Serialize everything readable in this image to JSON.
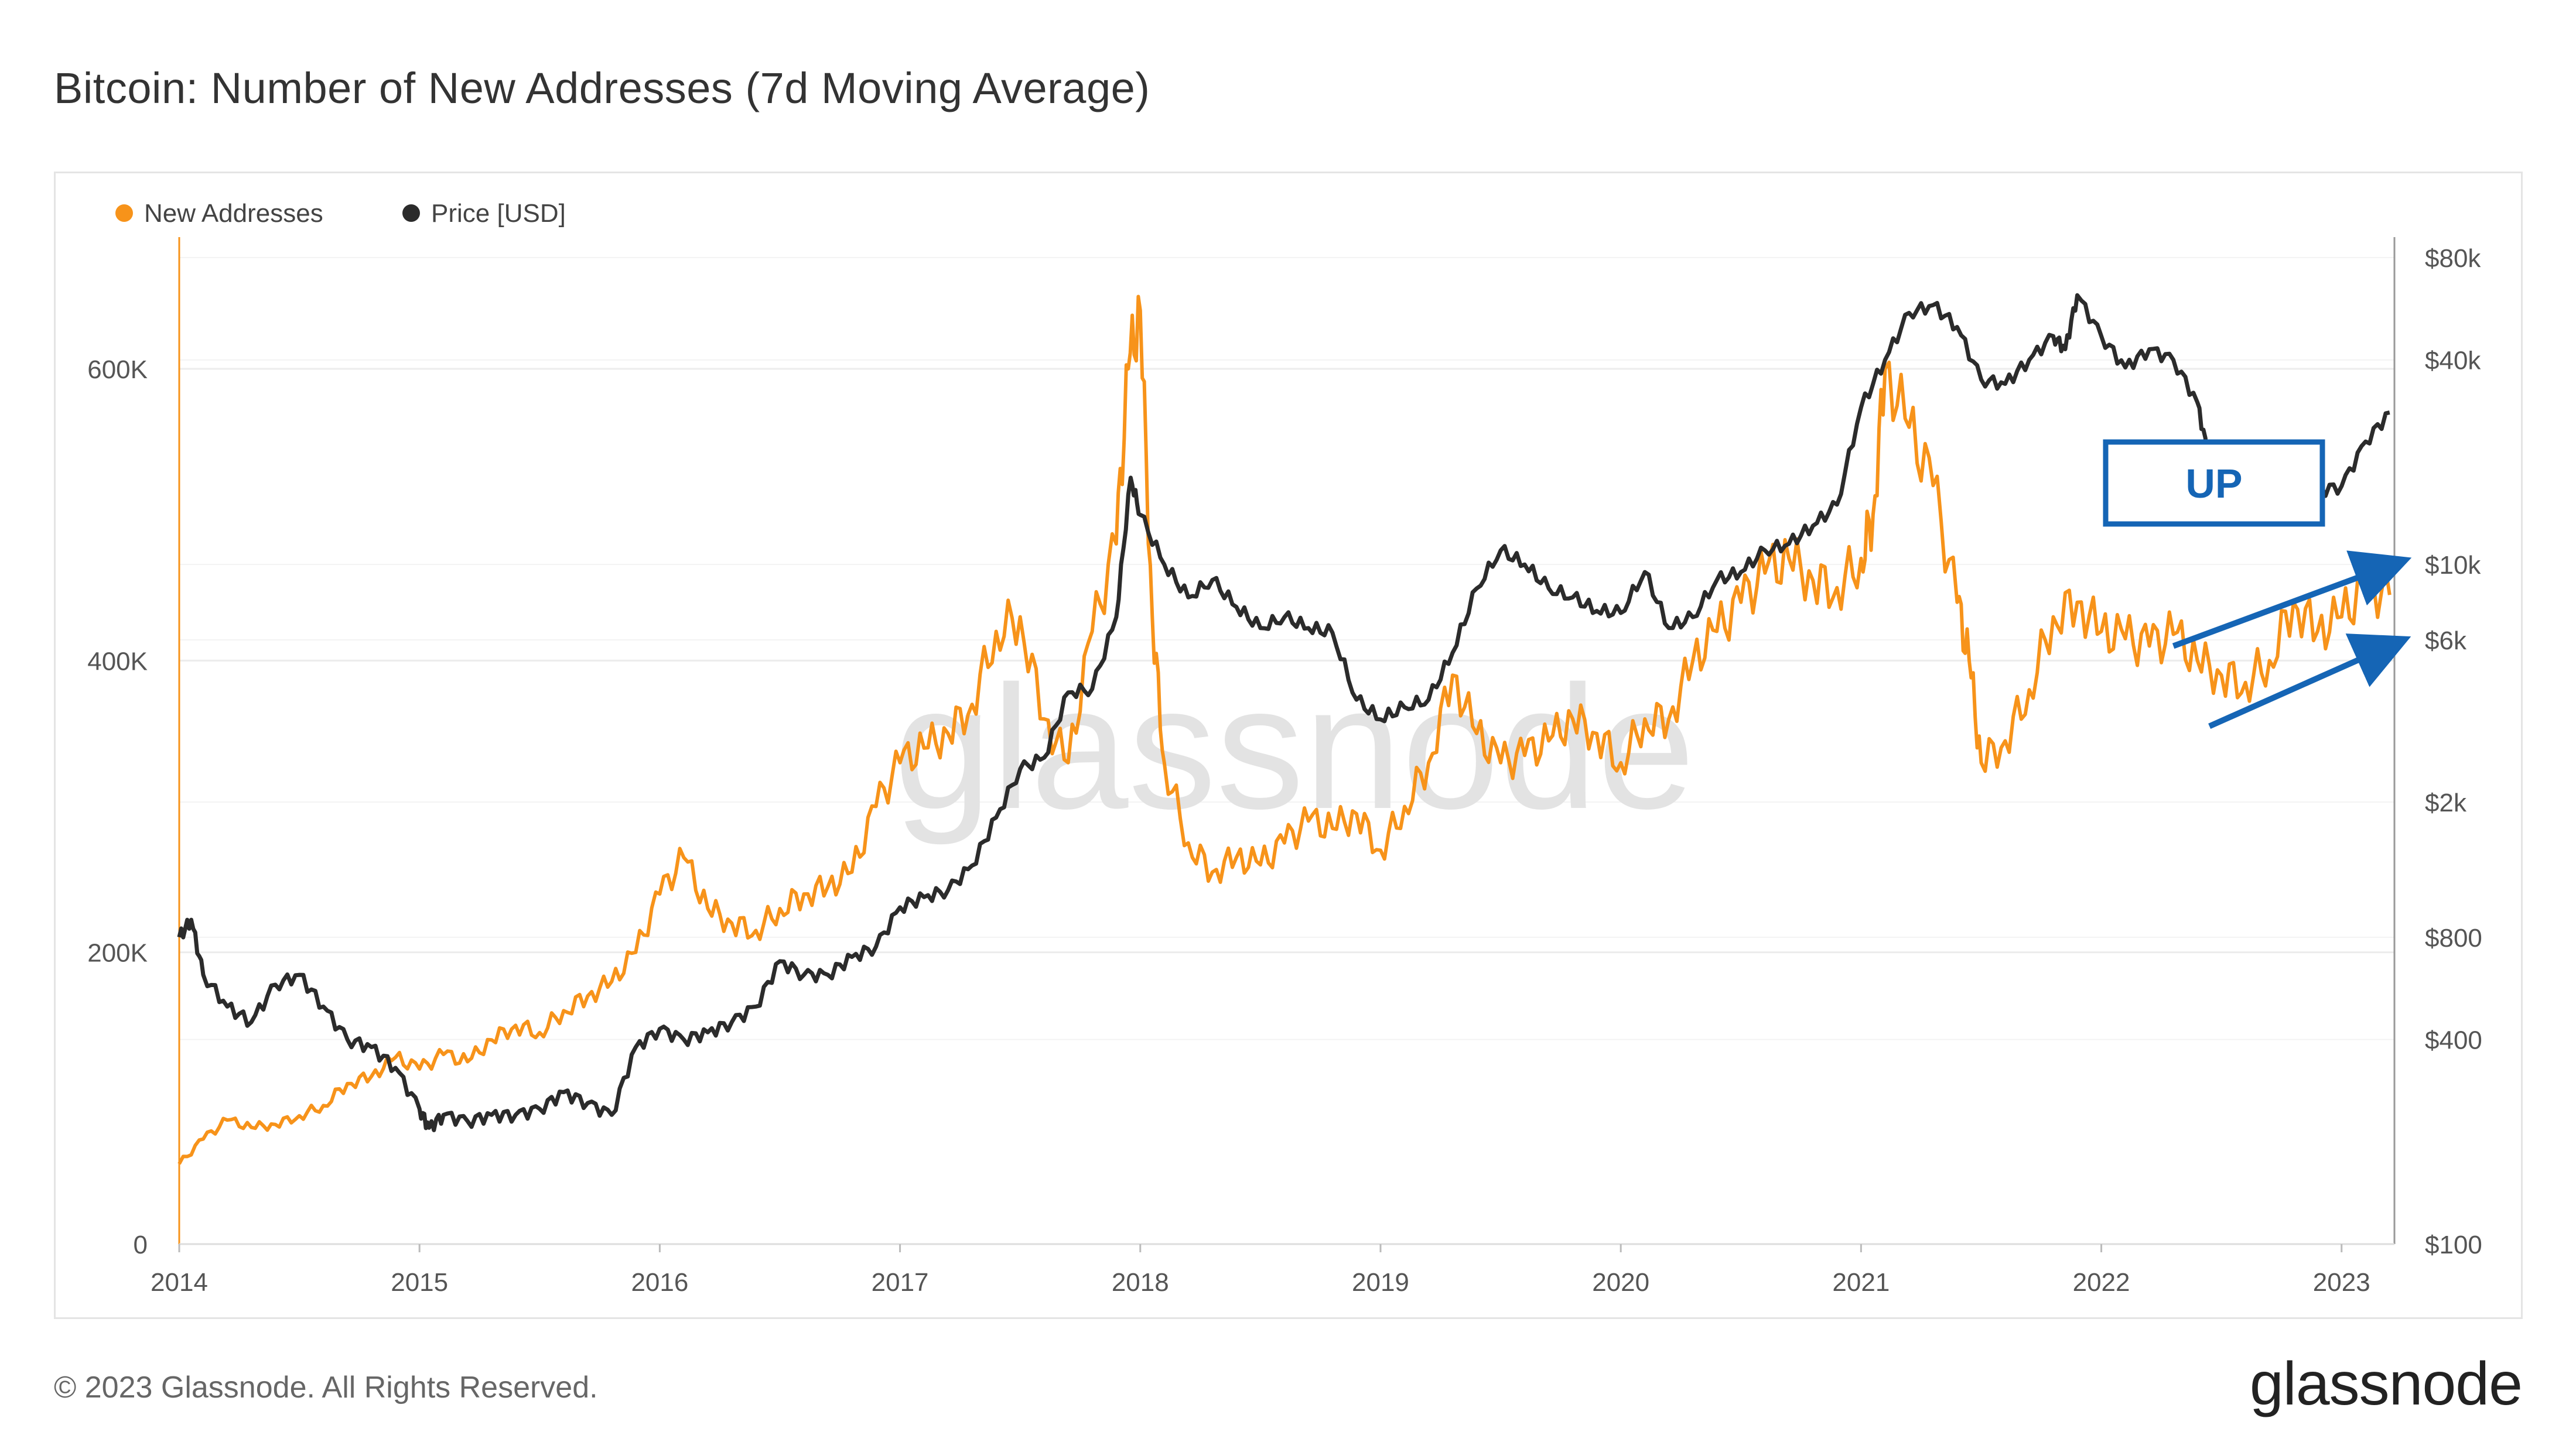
{
  "title": "Bitcoin: Number of New Addresses (7d Moving Average)",
  "footer": {
    "copyright": "© 2023 Glassnode. All Rights Reserved.",
    "logo": "glassnode"
  },
  "chart_data": {
    "type": "line",
    "title": "Bitcoin: Number of New Addresses (7d Moving Average)",
    "watermark": "glassnode",
    "legend": {
      "placement": "top-left",
      "entries": [
        {
          "name": "New Addresses",
          "color": "#f7931a",
          "icon": "dot-icon"
        },
        {
          "name": "Price [USD]",
          "color": "#2b2b2b",
          "icon": "dot-icon"
        }
      ]
    },
    "x_axis": {
      "ticks": [
        "2014",
        "2015",
        "2016",
        "2017",
        "2018",
        "2019",
        "2020",
        "2021",
        "2022",
        "2023"
      ],
      "range": [
        "2014-01",
        "2023-03"
      ]
    },
    "y_left": {
      "ticks": [
        "0",
        "200K",
        "400K",
        "600K"
      ],
      "range": [
        0,
        600000
      ]
    },
    "y_right": {
      "scale": "log",
      "ticks": [
        "$80k",
        "$40k",
        "$10k",
        "$6k",
        "$2k",
        "$800",
        "$400",
        "$100"
      ],
      "tick_values": [
        80000,
        40000,
        10000,
        6000,
        2000,
        800,
        400,
        100
      ],
      "range": [
        100,
        80000
      ]
    },
    "grid": true,
    "series": [
      {
        "name": "New Addresses",
        "color": "#f7931a",
        "axis": "left",
        "x": [
          2014.0,
          2014.1,
          2014.2,
          2014.3,
          2014.4,
          2014.5,
          2014.6,
          2014.7,
          2014.8,
          2014.9,
          2015.0,
          2015.1,
          2015.2,
          2015.3,
          2015.4,
          2015.5,
          2015.6,
          2015.7,
          2015.8,
          2015.9,
          2016.0,
          2016.1,
          2016.2,
          2016.3,
          2016.4,
          2016.5,
          2016.6,
          2016.7,
          2016.8,
          2016.9,
          2017.0,
          2017.1,
          2017.2,
          2017.3,
          2017.4,
          2017.5,
          2017.6,
          2017.7,
          2017.8,
          2017.9,
          2017.95,
          2018.0,
          2018.05,
          2018.1,
          2018.2,
          2018.3,
          2018.4,
          2018.5,
          2018.6,
          2018.7,
          2018.8,
          2018.9,
          2019.0,
          2019.1,
          2019.2,
          2019.3,
          2019.4,
          2019.5,
          2019.6,
          2019.7,
          2019.8,
          2019.9,
          2020.0,
          2020.1,
          2020.2,
          2020.3,
          2020.4,
          2020.5,
          2020.6,
          2020.7,
          2020.8,
          2020.9,
          2021.0,
          2021.05,
          2021.1,
          2021.2,
          2021.3,
          2021.4,
          2021.45,
          2021.5,
          2021.6,
          2021.7,
          2021.8,
          2021.9,
          2022.0,
          2022.1,
          2022.2,
          2022.3,
          2022.4,
          2022.5,
          2022.6,
          2022.7,
          2022.8,
          2022.9,
          2023.0,
          2023.1,
          2023.2
        ],
        "values": [
          55000,
          72000,
          85000,
          80000,
          82000,
          88000,
          95000,
          110000,
          115000,
          128000,
          120000,
          130000,
          125000,
          140000,
          150000,
          145000,
          160000,
          170000,
          180000,
          200000,
          240000,
          265000,
          230000,
          220000,
          215000,
          230000,
          240000,
          245000,
          255000,
          300000,
          330000,
          340000,
          350000,
          370000,
          420000,
          430000,
          360000,
          330000,
          420000,
          480000,
          600000,
          640000,
          430000,
          330000,
          275000,
          255000,
          265000,
          260000,
          275000,
          290000,
          285000,
          295000,
          270000,
          300000,
          330000,
          390000,
          350000,
          330000,
          335000,
          345000,
          360000,
          350000,
          330000,
          360000,
          360000,
          400000,
          420000,
          440000,
          460000,
          470000,
          455000,
          450000,
          470000,
          500000,
          600000,
          560000,
          520000,
          440000,
          400000,
          330000,
          345000,
          380000,
          430000,
          440000,
          420000,
          415000,
          410000,
          418000,
          400000,
          390000,
          385000,
          400000,
          440000,
          420000,
          430000,
          450000,
          445000
        ]
      },
      {
        "name": "Price [USD]",
        "color": "#2b2b2b",
        "axis": "right",
        "x": [
          2014.0,
          2014.05,
          2014.1,
          2014.2,
          2014.3,
          2014.4,
          2014.5,
          2014.6,
          2014.7,
          2014.8,
          2014.9,
          2015.0,
          2015.04,
          2015.1,
          2015.2,
          2015.3,
          2015.4,
          2015.5,
          2015.6,
          2015.7,
          2015.8,
          2015.9,
          2016.0,
          2016.1,
          2016.2,
          2016.3,
          2016.4,
          2016.5,
          2016.6,
          2016.7,
          2016.8,
          2016.9,
          2017.0,
          2017.1,
          2017.2,
          2017.3,
          2017.4,
          2017.5,
          2017.6,
          2017.7,
          2017.8,
          2017.9,
          2017.96,
          2018.0,
          2018.1,
          2018.2,
          2018.3,
          2018.4,
          2018.5,
          2018.6,
          2018.7,
          2018.8,
          2018.9,
          2019.0,
          2019.1,
          2019.2,
          2019.3,
          2019.4,
          2019.5,
          2019.6,
          2019.7,
          2019.8,
          2019.9,
          2020.0,
          2020.1,
          2020.2,
          2020.3,
          2020.4,
          2020.5,
          2020.6,
          2020.7,
          2020.8,
          2020.9,
          2021.0,
          2021.1,
          2021.2,
          2021.3,
          2021.4,
          2021.5,
          2021.6,
          2021.7,
          2021.8,
          2021.85,
          2021.9,
          2022.0,
          2022.1,
          2022.2,
          2022.3,
          2022.4,
          2022.45,
          2022.5,
          2022.6,
          2022.7,
          2022.8,
          2022.9,
          2023.0,
          2023.1,
          2023.2
        ],
        "values": [
          800,
          900,
          620,
          500,
          450,
          580,
          620,
          500,
          400,
          380,
          330,
          250,
          220,
          240,
          230,
          240,
          240,
          250,
          280,
          260,
          240,
          380,
          430,
          400,
          420,
          450,
          500,
          680,
          620,
          620,
          700,
          750,
          980,
          1050,
          1100,
          1300,
          1800,
          2500,
          2700,
          4200,
          4300,
          7000,
          18000,
          14000,
          10000,
          8000,
          9000,
          7500,
          6500,
          7000,
          6500,
          6300,
          4000,
          3500,
          3800,
          4000,
          5500,
          8500,
          11000,
          10000,
          8500,
          8000,
          7300,
          7200,
          9500,
          6500,
          7000,
          9000,
          9500,
          11000,
          11500,
          13000,
          15000,
          29000,
          40000,
          55000,
          58000,
          50000,
          35000,
          34000,
          40000,
          47000,
          43000,
          62000,
          47000,
          38000,
          43000,
          40000,
          30000,
          20000,
          20000,
          22000,
          19500,
          20000,
          16500,
          17000,
          23000,
          28000
        ]
      }
    ],
    "annotations": [
      {
        "type": "box",
        "text": "UP",
        "color": "#1565b5"
      },
      {
        "type": "arrow",
        "color": "#1565b5",
        "from": [
          2022.3,
          410000
        ],
        "to": [
          2023.2,
          465000
        ]
      },
      {
        "type": "arrow",
        "color": "#1565b5",
        "from": [
          2022.45,
          355000
        ],
        "to": [
          2023.2,
          410000
        ]
      }
    ]
  }
}
